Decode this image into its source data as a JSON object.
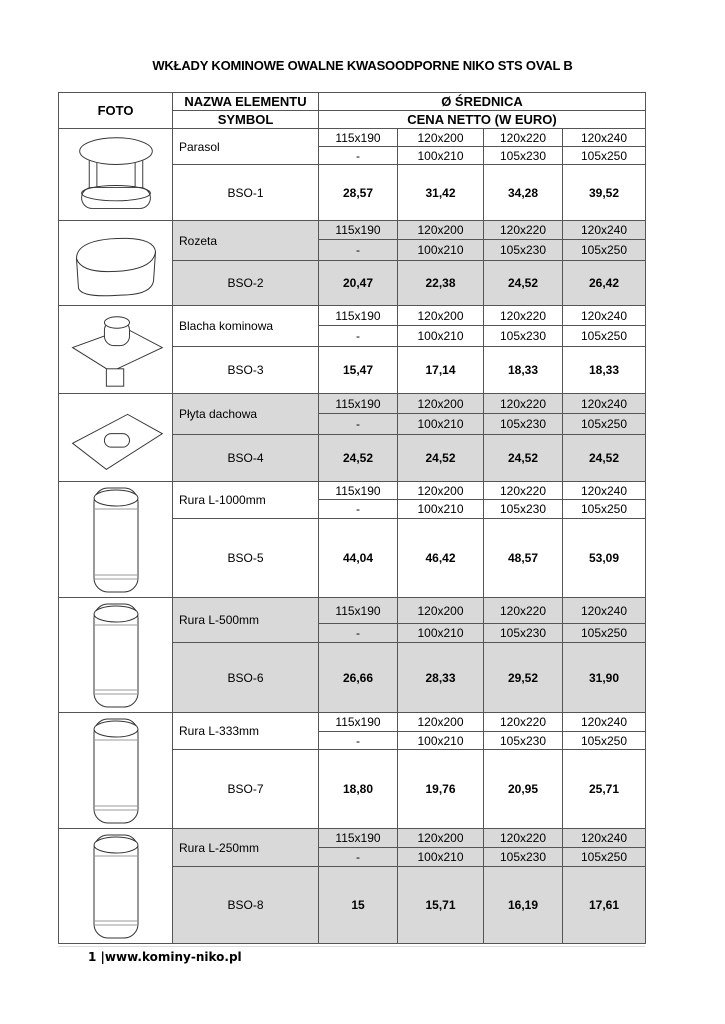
{
  "title": "WKŁADY KOMINOWE OWALNE KWASOODPORNE NIKO STS OVAL B",
  "header": {
    "foto": "FOTO",
    "name": "NAZWA ELEMENTU",
    "symbol": "SYMBOL",
    "diameter": "Ø ŚREDNICA",
    "price": "CENA NETTO (W EURO)"
  },
  "shade_color": "#d9d9d9",
  "products": [
    {
      "icon": "parasol-icon",
      "name": "Parasol",
      "symbol": "BSO-1",
      "sizes_a": [
        "115x190",
        "120x200",
        "120x220",
        "120x240"
      ],
      "sizes_b": [
        "-",
        "100x210",
        "105x230",
        "105x250"
      ],
      "prices": [
        "28,57",
        "31,42",
        "34,28",
        "39,52"
      ],
      "shaded": false
    },
    {
      "icon": "rozeta-icon",
      "name": "Rozeta",
      "symbol": "BSO-2",
      "sizes_a": [
        "115x190",
        "120x200",
        "120x220",
        "120x240"
      ],
      "sizes_b": [
        "-",
        "100x210",
        "105x230",
        "105x250"
      ],
      "prices": [
        "20,47",
        "22,38",
        "24,52",
        "26,42"
      ],
      "shaded": true
    },
    {
      "icon": "chimney-plate-icon",
      "name": "Blacha kominowa",
      "symbol": "BSO-3",
      "sizes_a": [
        "115x190",
        "120x200",
        "120x220",
        "120x240"
      ],
      "sizes_b": [
        "-",
        "100x210",
        "105x230",
        "105x250"
      ],
      "prices": [
        "15,47",
        "17,14",
        "18,33",
        "18,33"
      ],
      "shaded": false
    },
    {
      "icon": "roof-plate-icon",
      "name": "Płyta dachowa",
      "symbol": "BSO-4",
      "sizes_a": [
        "115x190",
        "120x200",
        "120x220",
        "120x240"
      ],
      "sizes_b": [
        "-",
        "100x210",
        "105x230",
        "105x250"
      ],
      "prices": [
        "24,52",
        "24,52",
        "24,52",
        "24,52"
      ],
      "shaded": true
    },
    {
      "icon": "pipe-icon",
      "name": "Rura L-1000mm",
      "symbol": "BSO-5",
      "sizes_a": [
        "115x190",
        "120x200",
        "120x220",
        "120x240"
      ],
      "sizes_b": [
        "-",
        "100x210",
        "105x230",
        "105x250"
      ],
      "prices": [
        "44,04",
        "46,42",
        "48,57",
        "53,09"
      ],
      "shaded": false
    },
    {
      "icon": "pipe-icon",
      "name": "Rura L-500mm",
      "symbol": "BSO-6",
      "sizes_a": [
        "115x190",
        "120x200",
        "120x220",
        "120x240"
      ],
      "sizes_b": [
        "-",
        "100x210",
        "105x230",
        "105x250"
      ],
      "prices": [
        "26,66",
        "28,33",
        "29,52",
        "31,90"
      ],
      "shaded": true
    },
    {
      "icon": "pipe-icon",
      "name": "Rura L-333mm",
      "symbol": "BSO-7",
      "sizes_a": [
        "115x190",
        "120x200",
        "120x220",
        "120x240"
      ],
      "sizes_b": [
        "-",
        "100x210",
        "105x230",
        "105x250"
      ],
      "prices": [
        "18,80",
        "19,76",
        "20,95",
        "25,71"
      ],
      "shaded": false
    },
    {
      "icon": "pipe-icon",
      "name": "Rura L-250mm",
      "symbol": "BSO-8",
      "sizes_a": [
        "115x190",
        "120x200",
        "120x220",
        "120x240"
      ],
      "sizes_b": [
        "-",
        "100x210",
        "105x230",
        "105x250"
      ],
      "prices": [
        "15",
        "15,71",
        "16,19",
        "17,61"
      ],
      "shaded": true
    }
  ],
  "footer": {
    "page": "1",
    "url": "www.kominy-niko.pl"
  }
}
